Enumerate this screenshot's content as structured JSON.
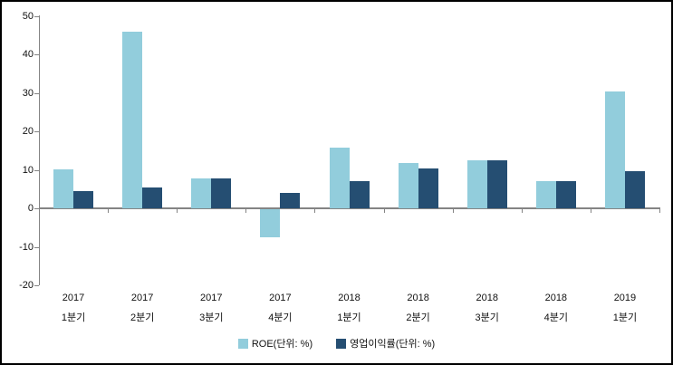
{
  "chart_data": {
    "type": "bar",
    "title": "",
    "xlabel": "",
    "ylabel": "",
    "categories": [
      {
        "year": "2017",
        "quarter": "1분기"
      },
      {
        "year": "2017",
        "quarter": "2분기"
      },
      {
        "year": "2017",
        "quarter": "3분기"
      },
      {
        "year": "2017",
        "quarter": "4분기"
      },
      {
        "year": "2018",
        "quarter": "1분기"
      },
      {
        "year": "2018",
        "quarter": "2분기"
      },
      {
        "year": "2018",
        "quarter": "3분기"
      },
      {
        "year": "2018",
        "quarter": "4분기"
      },
      {
        "year": "2019",
        "quarter": "1분기"
      }
    ],
    "series": [
      {
        "name": "ROE(단위: %)",
        "color": "#92CDDC",
        "values": [
          10.1,
          46.0,
          7.8,
          -7.3,
          15.8,
          11.8,
          12.5,
          7.1,
          30.4
        ]
      },
      {
        "name": "영업이익률(단위: %)",
        "color": "#254E72",
        "values": [
          4.5,
          5.5,
          7.8,
          4.0,
          7.0,
          10.3,
          12.5,
          7.1,
          9.6
        ]
      }
    ],
    "ylim": [
      -20,
      50
    ],
    "ytick_step": 10,
    "yticks": [
      50,
      40,
      30,
      20,
      10,
      0,
      -10,
      -20
    ],
    "grid": false,
    "legend_position": "bottom-center",
    "axis_color": "#848484",
    "text_color": "#111111",
    "background": "#FFFFFF"
  }
}
